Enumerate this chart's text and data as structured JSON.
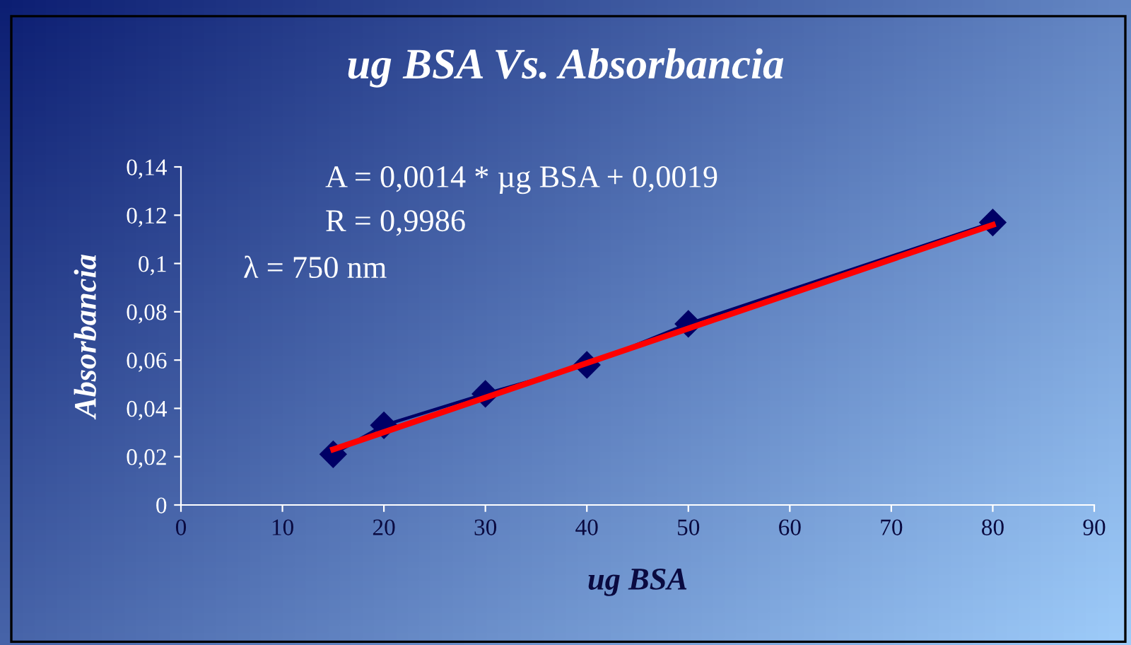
{
  "chart_data": {
    "type": "line",
    "title": "ug BSA Vs. Absorbancia",
    "xlabel": "ug BSA",
    "ylabel": "Absorbancia",
    "x": [
      15,
      20,
      30,
      40,
      50,
      80
    ],
    "series": [
      {
        "color": "#000066",
        "values": [
          0.021,
          0.033,
          0.046,
          0.058,
          0.075,
          0.117
        ],
        "marker": "diamond"
      },
      {
        "type": "line",
        "color": "#ff0000",
        "x": [
          15,
          80
        ],
        "values": [
          0.023,
          0.116
        ],
        "marker": "none"
      }
    ],
    "xlim": [
      0,
      90
    ],
    "xticks": [
      0,
      10,
      20,
      30,
      40,
      50,
      60,
      70,
      80,
      90
    ],
    "ylim": [
      0,
      0.14
    ],
    "yticks": [
      {
        "value": 0,
        "label": "0"
      },
      {
        "value": 0.02,
        "label": "0,02"
      },
      {
        "value": 0.04,
        "label": "0,04"
      },
      {
        "value": 0.06,
        "label": "0,06"
      },
      {
        "value": 0.08,
        "label": "0,08"
      },
      {
        "value": 0.1,
        "label": "0,1"
      },
      {
        "value": 0.12,
        "label": "0,12"
      },
      {
        "value": 0.14,
        "label": "0,14"
      }
    ],
    "annotations": [
      "A = 0,0014 * µg BSA + 0,0019",
      "R = 0,9986",
      "λ = 750 nm"
    ],
    "grid": false,
    "legend": false
  }
}
